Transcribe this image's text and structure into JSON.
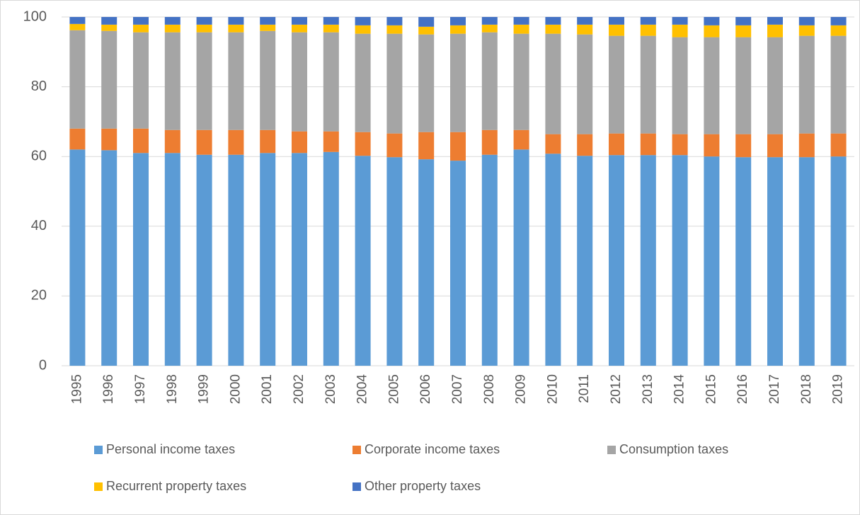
{
  "chart_data": {
    "type": "stacked_bar",
    "categories": [
      "1995",
      "1996",
      "1997",
      "1998",
      "1999",
      "2000",
      "2001",
      "2002",
      "2003",
      "2004",
      "2005",
      "2006",
      "2007",
      "2008",
      "2009",
      "2010",
      "2011",
      "2012",
      "2013",
      "2014",
      "2015",
      "2016",
      "2017",
      "2018",
      "2019"
    ],
    "series": [
      {
        "name": "Personal income taxes",
        "color": "#5b9bd5",
        "values": [
          62,
          61.8,
          61,
          61,
          60.5,
          60.5,
          61,
          61,
          61.3,
          60.2,
          59.8,
          59.2,
          58.8,
          60.5,
          62,
          60.8,
          60.2,
          60.4,
          60.4,
          60.4,
          60,
          59.8,
          59.8,
          59.8,
          60
        ]
      },
      {
        "name": "Corporate income taxes",
        "color": "#ed7d31",
        "values": [
          6,
          6.2,
          7,
          6.6,
          7.1,
          7.1,
          6.6,
          6.2,
          5.9,
          6.8,
          6.8,
          7.8,
          8.2,
          7.1,
          5.6,
          5.6,
          6.2,
          6.2,
          6.2,
          6,
          6.4,
          6.6,
          6.6,
          6.8,
          6.6
        ]
      },
      {
        "name": "Consumption taxes",
        "color": "#a5a5a5",
        "values": [
          28.2,
          28,
          27.6,
          28,
          28,
          28,
          28.4,
          28.4,
          28.4,
          28.2,
          28.6,
          28,
          28.2,
          28,
          27.6,
          28.8,
          28.6,
          28,
          28,
          27.8,
          27.8,
          27.8,
          27.8,
          28,
          28
        ]
      },
      {
        "name": "Recurrent property taxes",
        "color": "#ffc000",
        "values": [
          1.8,
          1.8,
          2.2,
          2.2,
          2.2,
          2.2,
          1.8,
          2.2,
          2.2,
          2.4,
          2.4,
          2.2,
          2.4,
          2.2,
          2.6,
          2.6,
          2.8,
          3.2,
          3.2,
          3.6,
          3.4,
          3.4,
          3.6,
          3,
          3
        ]
      },
      {
        "name": "Other property taxes",
        "color": "#4472c4",
        "values": [
          2,
          2.2,
          2.2,
          2.2,
          2.2,
          2.2,
          2.2,
          2.2,
          2.2,
          2.4,
          2.4,
          2.8,
          2.4,
          2.2,
          2.2,
          2.2,
          2.2,
          2.2,
          2.2,
          2.2,
          2.4,
          2.4,
          2.2,
          2.4,
          2.4
        ]
      }
    ],
    "ylim": [
      0,
      100
    ],
    "yticks": [
      0,
      20,
      40,
      60,
      80,
      100
    ],
    "grid": true
  }
}
